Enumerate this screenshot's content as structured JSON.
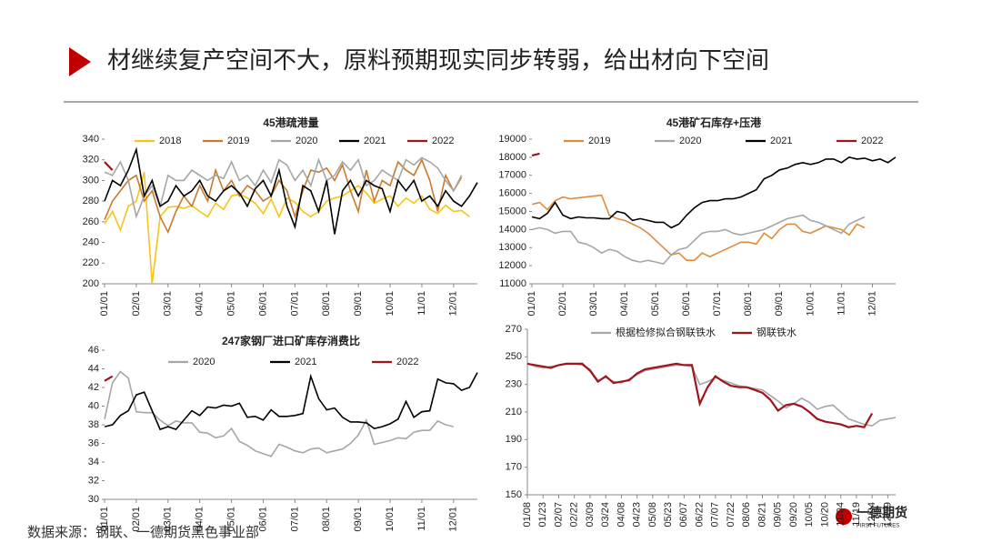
{
  "header": {
    "title": "材继续复产空间不大，原料预期现实同步转弱，给出材向下空间"
  },
  "source": "数据来源：钢联、一德期货黑色事业部",
  "logo": {
    "name": "一德期货",
    "english": "FIRST FUTURES"
  },
  "chart_data": [
    {
      "type": "line",
      "title": "45港疏港量",
      "categories": [
        "01/01",
        null,
        null,
        null,
        "02/01",
        null,
        null,
        null,
        "03/01",
        null,
        null,
        null,
        "04/01",
        null,
        null,
        null,
        "05/01",
        null,
        null,
        null,
        "06/01",
        null,
        null,
        null,
        "07/01",
        null,
        null,
        null,
        "08/01",
        null,
        null,
        null,
        "09/01",
        null,
        null,
        null,
        "10/01",
        null,
        null,
        null,
        "11/01",
        null,
        null,
        null,
        "12/01",
        null,
        null,
        null
      ],
      "ylim": [
        200,
        340
      ],
      "yticks": [
        200,
        220,
        240,
        260,
        280,
        300,
        320,
        340
      ],
      "series": [
        {
          "name": "2018",
          "color": "#f5c518",
          "values": [
            258,
            270,
            252,
            275,
            280,
            308,
            200,
            265,
            274,
            275,
            273,
            276,
            270,
            265,
            278,
            272,
            285,
            287,
            283,
            278,
            268,
            282,
            265,
            283,
            279,
            270,
            265,
            270,
            280,
            283,
            285,
            290,
            295,
            288,
            278,
            282,
            285,
            275,
            283,
            278,
            285,
            272,
            268,
            276,
            270,
            271,
            265,
            null
          ]
        },
        {
          "name": "2019",
          "color": "#c87a2e",
          "values": [
            262,
            280,
            290,
            300,
            305,
            280,
            290,
            265,
            250,
            270,
            285,
            275,
            295,
            280,
            310,
            290,
            300,
            285,
            295,
            290,
            280,
            285,
            300,
            290,
            265,
            290,
            310,
            308,
            312,
            300,
            315,
            290,
            270,
            310,
            280,
            300,
            295,
            318,
            310,
            305,
            320,
            300,
            270,
            305,
            290,
            303,
            null,
            null
          ]
        },
        {
          "name": "2020",
          "color": "#a6a6a6",
          "values": [
            308,
            305,
            318,
            300,
            265,
            285,
            295,
            275,
            305,
            300,
            300,
            310,
            305,
            300,
            305,
            302,
            318,
            300,
            305,
            295,
            310,
            298,
            320,
            315,
            300,
            310,
            295,
            320,
            300,
            305,
            318,
            310,
            320,
            295,
            300,
            310,
            305,
            300,
            320,
            315,
            322,
            318,
            312,
            300,
            290,
            305,
            null,
            null
          ]
        },
        {
          "name": "2021",
          "color": "#000000",
          "values": [
            280,
            300,
            295,
            310,
            330,
            285,
            300,
            275,
            280,
            295,
            285,
            290,
            300,
            285,
            280,
            290,
            295,
            288,
            275,
            292,
            300,
            285,
            310,
            275,
            255,
            295,
            290,
            270,
            300,
            248,
            290,
            300,
            285,
            300,
            295,
            292,
            270,
            300,
            290,
            300,
            280,
            285,
            275,
            290,
            280,
            275,
            285,
            298
          ]
        },
        {
          "name": "2022",
          "color": "#a0141e",
          "values": [
            318,
            310,
            null,
            null,
            null,
            null,
            null,
            null,
            null,
            null,
            null,
            null,
            null,
            null,
            null,
            null,
            null,
            null,
            null,
            null,
            null,
            null,
            null,
            null,
            null,
            null,
            null,
            null,
            null,
            null,
            null,
            null,
            null,
            null,
            null,
            null,
            null,
            null,
            null,
            null,
            null,
            null,
            null,
            null,
            null,
            null,
            null,
            null
          ]
        }
      ]
    },
    {
      "type": "line",
      "title": "45港矿石库存+压港",
      "categories": [
        "01/01",
        null,
        null,
        null,
        "02/01",
        null,
        null,
        null,
        "03/01",
        null,
        null,
        null,
        "04/01",
        null,
        null,
        null,
        "05/01",
        null,
        null,
        null,
        "06/01",
        null,
        null,
        null,
        "07/01",
        null,
        null,
        null,
        "08/01",
        null,
        null,
        null,
        "09/01",
        null,
        null,
        null,
        "10/01",
        null,
        null,
        null,
        "11/01",
        null,
        null,
        null,
        "12/01",
        null,
        null,
        null
      ],
      "ylim": [
        11000,
        19000
      ],
      "yticks": [
        11000,
        12000,
        13000,
        14000,
        15000,
        16000,
        17000,
        18000,
        19000
      ],
      "series": [
        {
          "name": "2019",
          "color": "#e08a3c",
          "values": [
            15400,
            15500,
            15100,
            15600,
            15800,
            15700,
            15750,
            15800,
            15850,
            15900,
            14800,
            14600,
            14500,
            14300,
            14100,
            13800,
            13400,
            13000,
            12600,
            12700,
            12300,
            12300,
            12700,
            12500,
            12700,
            12900,
            13100,
            13300,
            13300,
            13200,
            13800,
            13500,
            14000,
            14300,
            14300,
            13900,
            13800,
            14000,
            14200,
            14100,
            14000,
            13700,
            14300,
            14100,
            null,
            null,
            null,
            null
          ]
        },
        {
          "name": "2020",
          "color": "#a6a6a6",
          "values": [
            14000,
            14100,
            14000,
            13800,
            13900,
            13900,
            13300,
            13200,
            13000,
            12700,
            12900,
            12800,
            12500,
            12300,
            12200,
            12300,
            12200,
            12100,
            12600,
            12900,
            13000,
            13400,
            13800,
            13900,
            13900,
            14000,
            13800,
            13700,
            13800,
            13900,
            14000,
            14200,
            14400,
            14600,
            14700,
            14800,
            14500,
            14400,
            14200,
            14000,
            13800,
            14300,
            14500,
            14700,
            null,
            null,
            null,
            null
          ]
        },
        {
          "name": "2021",
          "color": "#000000",
          "values": [
            14700,
            14600,
            14900,
            15500,
            14800,
            14600,
            14700,
            14650,
            14650,
            14600,
            14600,
            15000,
            14900,
            14500,
            14600,
            14500,
            14400,
            14400,
            14100,
            14300,
            14800,
            15200,
            15500,
            15600,
            15600,
            15700,
            15700,
            15800,
            16000,
            16200,
            16800,
            17000,
            17300,
            17400,
            17600,
            17700,
            17600,
            17700,
            17900,
            17900,
            17700,
            18000,
            17900,
            17950,
            17800,
            17900,
            17700,
            18000
          ]
        },
        {
          "name": "2022",
          "color": "#a0141e",
          "values": [
            18100,
            18200,
            null,
            null,
            null,
            null,
            null,
            null,
            null,
            null,
            null,
            null,
            null,
            null,
            null,
            null,
            null,
            null,
            null,
            null,
            null,
            null,
            null,
            null,
            null,
            null,
            null,
            null,
            null,
            null,
            null,
            null,
            null,
            null,
            null,
            null,
            null,
            null,
            null,
            null,
            null,
            null,
            null,
            null,
            null,
            null,
            null,
            null
          ]
        }
      ]
    },
    {
      "type": "line",
      "title": "247家钢厂进口矿库存消费比",
      "categories": [
        "01/01",
        null,
        null,
        null,
        "02/01",
        null,
        null,
        null,
        "03/01",
        null,
        null,
        null,
        "04/01",
        null,
        null,
        null,
        "05/01",
        null,
        null,
        null,
        "06/01",
        null,
        null,
        null,
        "07/01",
        null,
        null,
        null,
        "08/01",
        null,
        null,
        null,
        "09/01",
        null,
        null,
        null,
        "10/01",
        null,
        null,
        null,
        "11/01",
        null,
        null,
        null,
        "12/01",
        null,
        null,
        null
      ],
      "ylim": [
        30,
        46
      ],
      "yticks": [
        30,
        32,
        34,
        36,
        38,
        40,
        42,
        44,
        46
      ],
      "series": [
        {
          "name": "2020",
          "color": "#a6a6a6",
          "values": [
            38.6,
            42.5,
            43.7,
            43,
            39.4,
            39.3,
            39.3,
            38.5,
            37.9,
            38.4,
            38.2,
            38.2,
            37.2,
            37.1,
            36.6,
            36.8,
            37.6,
            36.2,
            35.8,
            35.2,
            34.9,
            34.6,
            35.9,
            35.6,
            35.2,
            35.0,
            35.4,
            35.5,
            35.0,
            35.2,
            35.4,
            36.0,
            36.9,
            38.5,
            35.9,
            36.1,
            36.3,
            36.6,
            36.5,
            37.2,
            37.4,
            37.4,
            38.4,
            38.0,
            37.8,
            null,
            null,
            null
          ]
        },
        {
          "name": "2021",
          "color": "#000000",
          "values": [
            37.8,
            38,
            39,
            39.5,
            41.2,
            41.5,
            39.5,
            37.5,
            37.8,
            37.5,
            38.5,
            39.5,
            39,
            39.9,
            39.8,
            40.1,
            40.0,
            40.3,
            38.8,
            38.9,
            38.5,
            39.6,
            38.9,
            38.9,
            39,
            39.2,
            43.2,
            40.8,
            39.6,
            39.8,
            38.8,
            38.3,
            38.3,
            38.2,
            37.6,
            37.8,
            38.1,
            38.6,
            40.5,
            38.8,
            39.4,
            39.5,
            42.9,
            42.5,
            42.4,
            41.7,
            42.0,
            43.6
          ]
        },
        {
          "name": "2022",
          "color": "#a0141e",
          "values": [
            42.7,
            43.2,
            null,
            null,
            null,
            null,
            null,
            null,
            null,
            null,
            null,
            null,
            null,
            null,
            null,
            null,
            null,
            null,
            null,
            null,
            null,
            null,
            null,
            null,
            null,
            null,
            null,
            null,
            null,
            null,
            null,
            null,
            null,
            null,
            null,
            null,
            null,
            null,
            null,
            null,
            null,
            null,
            null,
            null,
            null,
            null,
            null,
            null
          ]
        }
      ]
    },
    {
      "type": "line",
      "categories": [
        "01/08",
        null,
        "01/23",
        null,
        "02/07",
        null,
        "02/22",
        null,
        "03/09",
        null,
        "03/24",
        null,
        "04/08",
        null,
        "04/23",
        null,
        "05/08",
        null,
        "05/23",
        null,
        "06/07",
        null,
        "06/22",
        null,
        "07/07",
        null,
        "07/22",
        null,
        "08/06",
        null,
        "08/21",
        null,
        "09/05",
        null,
        "09/20",
        null,
        "10/05",
        null,
        "10/20",
        null,
        "11/04",
        null,
        "11/19",
        null,
        "12/04",
        null,
        "12/19",
        null
      ],
      "ylim": [
        150,
        270
      ],
      "yticks": [
        150,
        170,
        190,
        210,
        230,
        250,
        270
      ],
      "series": [
        {
          "name": "根据检修拟合钢联铁水",
          "color": "#a6a6a6",
          "values": [
            245,
            243,
            242,
            243,
            244,
            245,
            245,
            244,
            241,
            233,
            235,
            232,
            231,
            234,
            237,
            240,
            241,
            242,
            243,
            244,
            244,
            243,
            230,
            232,
            235,
            233,
            231,
            229,
            228,
            227,
            226,
            222,
            218,
            213,
            216,
            220,
            217,
            212,
            214,
            215,
            210,
            205,
            203,
            201,
            200,
            204,
            205,
            206
          ]
        },
        {
          "name": "钢联铁水",
          "color": "#a0141e",
          "values": [
            245,
            244,
            243,
            242,
            244,
            245,
            245,
            245,
            240,
            232,
            236,
            231,
            232,
            233,
            238,
            241,
            242,
            243,
            244,
            245,
            244,
            244,
            216,
            228,
            236,
            232,
            229,
            228,
            228,
            226,
            224,
            219,
            211,
            215,
            216,
            214,
            210,
            205,
            203,
            202,
            201,
            199,
            200,
            199,
            209,
            null,
            null,
            null
          ]
        }
      ]
    }
  ]
}
